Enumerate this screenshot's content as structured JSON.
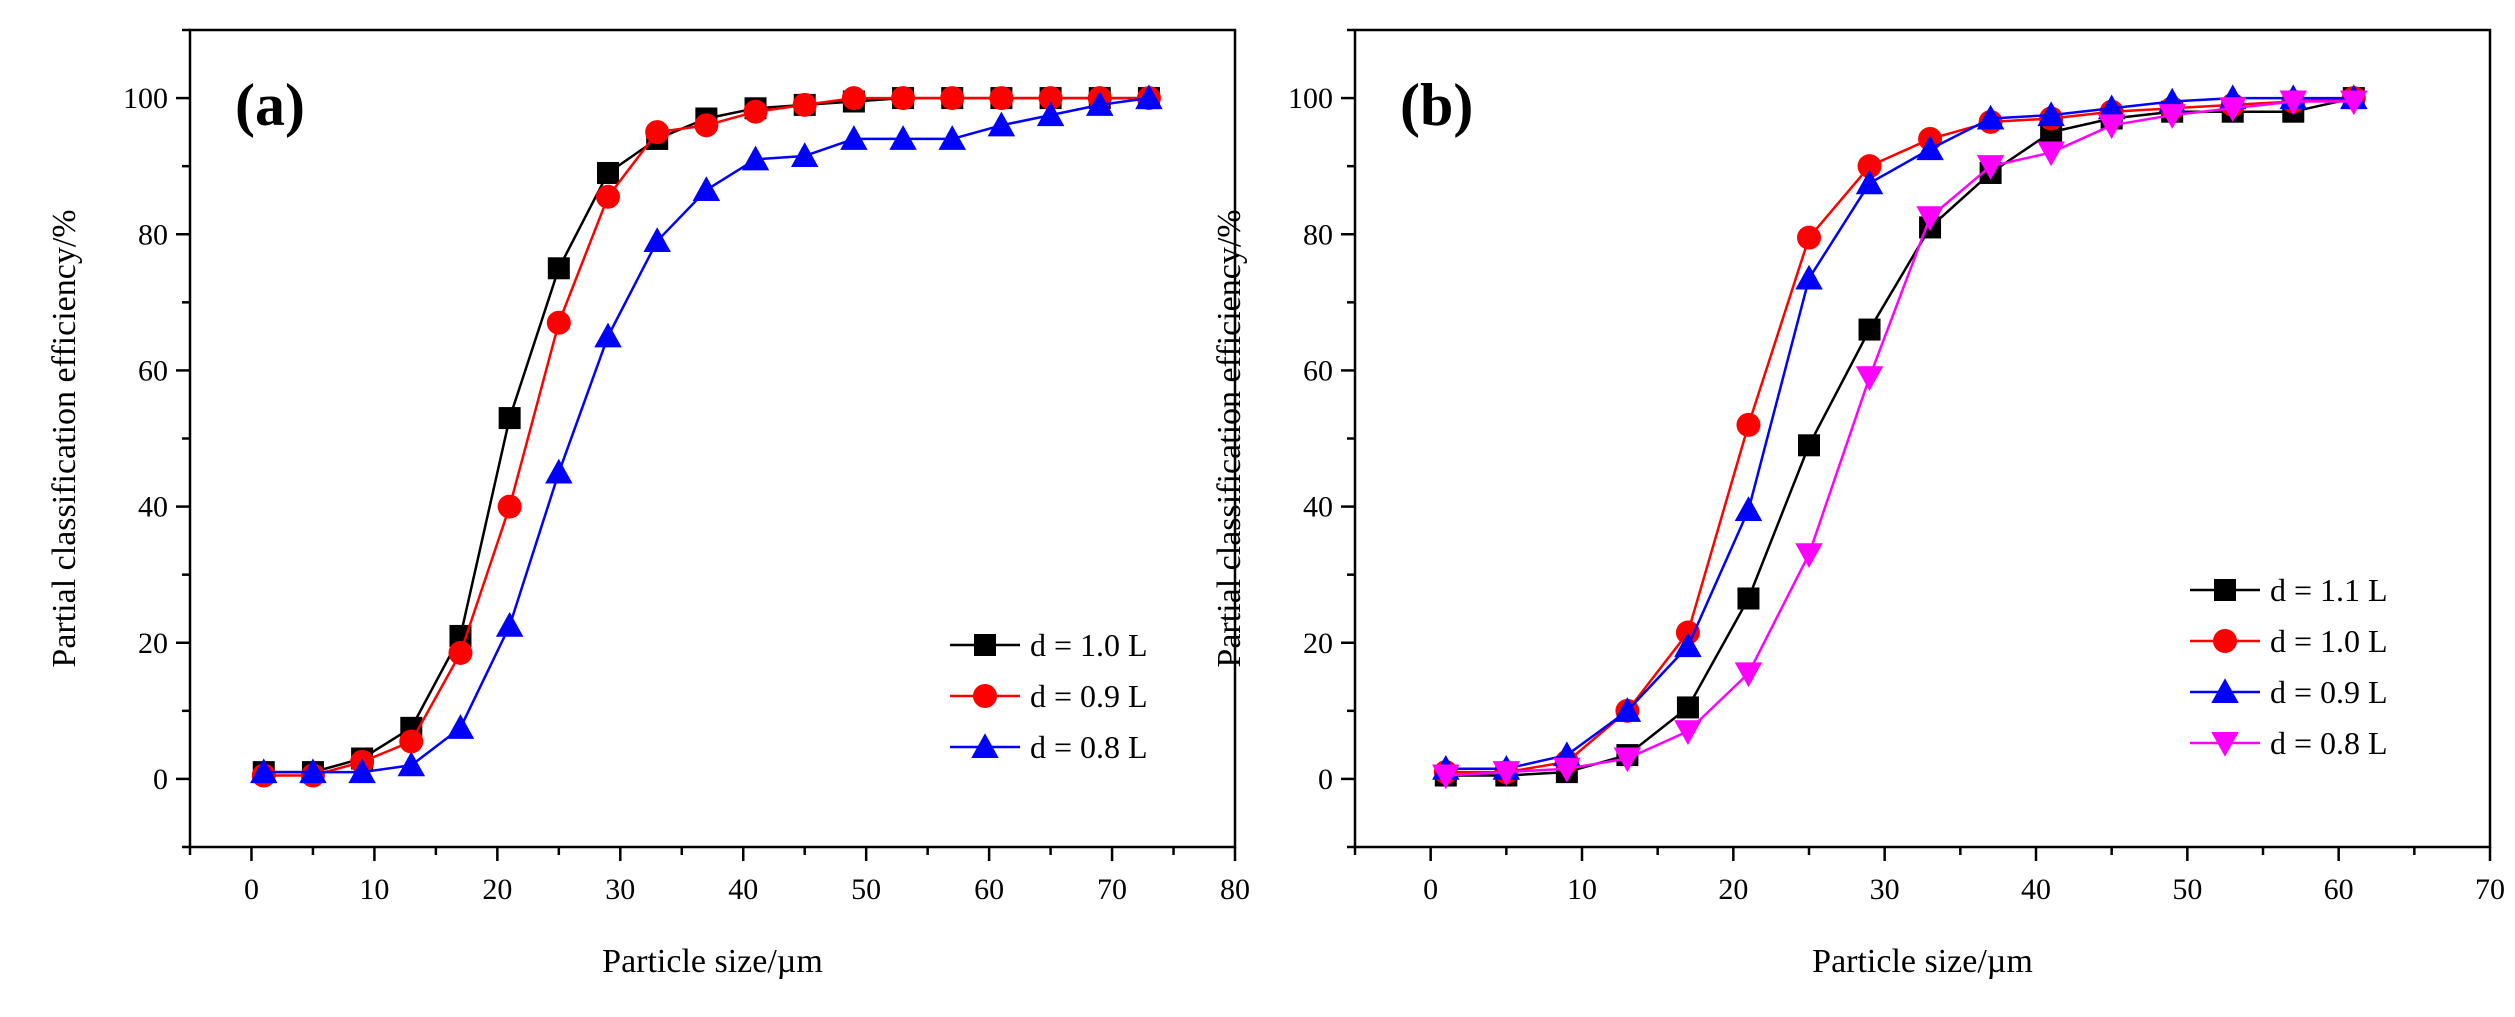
{
  "chart_data": [
    {
      "type": "line",
      "panel_label": "(a)",
      "xlabel": "Particle size/µm",
      "ylabel": "Partial classification efficiency/%",
      "xlim": [
        -5,
        80
      ],
      "ylim": [
        -10,
        110
      ],
      "xticks": [
        0,
        10,
        20,
        30,
        40,
        50,
        60,
        70,
        80
      ],
      "yticks": [
        0,
        20,
        40,
        60,
        80,
        100
      ],
      "grid": false,
      "legend_position": "lower-right",
      "series": [
        {
          "name": "d = 1.0 L",
          "color": "#000000",
          "marker": "square",
          "x": [
            1,
            5,
            9,
            13,
            17,
            21,
            25,
            29,
            33,
            37,
            41,
            45,
            49,
            53,
            57,
            61,
            65,
            69,
            73
          ],
          "y": [
            1,
            1,
            3,
            7.5,
            21,
            53,
            75,
            89,
            94,
            97,
            98.5,
            99,
            99.5,
            100,
            100,
            100,
            100,
            100,
            100
          ]
        },
        {
          "name": "d = 0.9 L",
          "color": "#ff0000",
          "marker": "circle",
          "x": [
            1,
            5,
            9,
            13,
            17,
            21,
            25,
            29,
            33,
            37,
            41,
            45,
            49,
            53,
            57,
            61,
            65,
            69,
            73
          ],
          "y": [
            0.5,
            0.5,
            2.5,
            5.5,
            18.5,
            40,
            67,
            85.5,
            95,
            96,
            98,
            99,
            100,
            100,
            100,
            100,
            100,
            100,
            100
          ]
        },
        {
          "name": "d = 0.8 L",
          "color": "#0000ff",
          "marker": "triangle-up",
          "x": [
            1,
            5,
            9,
            13,
            17,
            21,
            25,
            29,
            33,
            37,
            41,
            45,
            49,
            53,
            57,
            61,
            65,
            69,
            73
          ],
          "y": [
            1,
            1,
            1,
            2,
            7.5,
            22.5,
            45,
            65,
            79,
            86.5,
            91,
            91.5,
            94,
            94,
            94,
            96,
            97.5,
            99,
            100
          ]
        }
      ]
    },
    {
      "type": "line",
      "panel_label": "(b)",
      "xlabel": "Particle size/µm",
      "ylabel": "Partial classification efficiency/%",
      "xlim": [
        -5,
        70
      ],
      "ylim": [
        -10,
        110
      ],
      "xticks": [
        0,
        10,
        20,
        30,
        40,
        50,
        60,
        70
      ],
      "yticks": [
        0,
        20,
        40,
        60,
        80,
        100
      ],
      "grid": false,
      "legend_position": "lower-right",
      "series": [
        {
          "name": "d = 1.1 L",
          "color": "#000000",
          "marker": "square",
          "x": [
            1,
            5,
            9,
            13,
            17,
            21,
            25,
            29,
            33,
            37,
            41,
            45,
            49,
            53,
            57,
            61
          ],
          "y": [
            0.5,
            0.5,
            1,
            3.5,
            10.5,
            26.5,
            49,
            66,
            81,
            89,
            95,
            97,
            98,
            98,
            98,
            100
          ]
        },
        {
          "name": "d = 1.0 L",
          "color": "#ff0000",
          "marker": "circle",
          "x": [
            1,
            5,
            9,
            13,
            17,
            21,
            25,
            29,
            33,
            37,
            41,
            45,
            49,
            53,
            57,
            61
          ],
          "y": [
            1,
            1,
            2.5,
            10,
            21.5,
            52,
            79.5,
            90,
            94,
            96.5,
            97,
            98,
            98.5,
            99,
            99.5,
            100
          ]
        },
        {
          "name": "d = 0.9 L",
          "color": "#0000ff",
          "marker": "triangle-up",
          "x": [
            1,
            5,
            9,
            13,
            17,
            21,
            25,
            29,
            33,
            37,
            41,
            45,
            49,
            53,
            57,
            61
          ],
          "y": [
            1.5,
            1.5,
            3.5,
            10,
            19.5,
            39.5,
            73.5,
            87.5,
            92.5,
            97,
            97.5,
            98.5,
            99.5,
            100,
            100,
            100
          ]
        },
        {
          "name": "d = 0.8 L",
          "color": "#ff00ff",
          "marker": "triangle-down",
          "x": [
            1,
            5,
            9,
            13,
            17,
            21,
            25,
            29,
            33,
            37,
            41,
            45,
            49,
            53,
            57,
            61
          ],
          "y": [
            0.5,
            1,
            1.5,
            3,
            7,
            15.5,
            33,
            59,
            82.5,
            90,
            92,
            96,
            97.5,
            98.5,
            99.5,
            99.5
          ]
        }
      ]
    }
  ]
}
